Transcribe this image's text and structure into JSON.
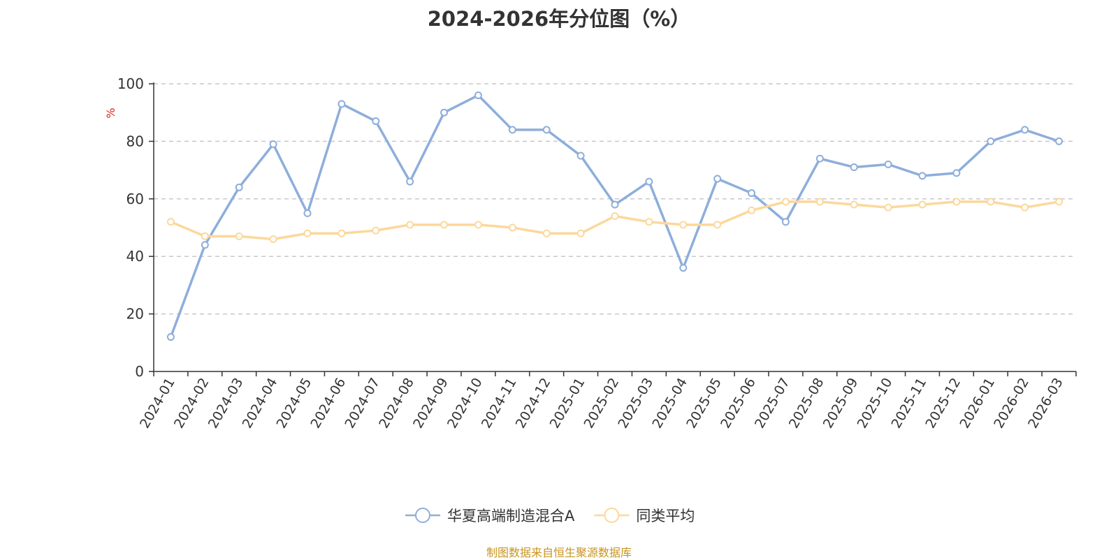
{
  "title": "2024-2026年分位图（%）",
  "source": "制图数据来自恒生聚源数据库",
  "chart_data": {
    "type": "line",
    "title": "2024-2026年分位图（%）",
    "ylabel": "%",
    "xlabel": "",
    "ylim": [
      0,
      100
    ],
    "yticks": [
      0,
      20,
      40,
      60,
      80,
      100
    ],
    "grid": true,
    "legend_position": "bottom-center",
    "categories": [
      "2024-01",
      "2024-02",
      "2024-03",
      "2024-04",
      "2024-05",
      "2024-06",
      "2024-07",
      "2024-08",
      "2024-09",
      "2024-10",
      "2024-11",
      "2024-12",
      "2025-01",
      "2025-02",
      "2025-03",
      "2025-04",
      "2025-05",
      "2025-06",
      "2025-07",
      "2025-08",
      "2025-09",
      "2025-10",
      "2025-11",
      "2025-12",
      "2026-01",
      "2026-02",
      "2026-03"
    ],
    "series": [
      {
        "name": "华夏高端制造混合A",
        "color": "#8eaedb",
        "values": [
          12,
          44,
          64,
          79,
          55,
          93,
          87,
          66,
          90,
          96,
          84,
          84,
          75,
          58,
          66,
          36,
          67,
          62,
          52,
          74,
          71,
          72,
          68,
          69,
          80,
          84,
          80
        ]
      },
      {
        "name": "同类平均",
        "color": "#fcd89b",
        "values": [
          52,
          47,
          47,
          46,
          48,
          48,
          49,
          51,
          51,
          51,
          50,
          48,
          48,
          54,
          52,
          51,
          51,
          56,
          59,
          59,
          58,
          57,
          58,
          59,
          59,
          57,
          59
        ]
      }
    ]
  }
}
